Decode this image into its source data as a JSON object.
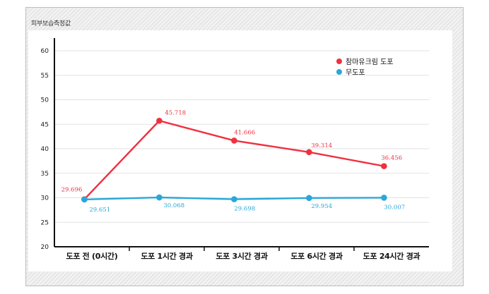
{
  "chart_data": {
    "type": "line",
    "ylabel": "피부보습측정값",
    "categories": [
      "도포 전 (0시간)",
      "도포 1시간 경과",
      "도포 3시간 경과",
      "도포 6시간 경과",
      "도포 24시간 경과"
    ],
    "ylim": [
      20,
      60
    ],
    "yticks": [
      20,
      25,
      30,
      35,
      40,
      45,
      50,
      55,
      60
    ],
    "grid": true,
    "legend_position": "top-right",
    "series": [
      {
        "name": "참마유크림 도포",
        "color": "#f03040",
        "values": [
          29.696,
          45.718,
          41.666,
          39.314,
          36.456
        ],
        "labels": [
          "29.696",
          "45.718",
          "41.666",
          "39.314",
          "36.456"
        ]
      },
      {
        "name": "무도포",
        "color": "#2aa7d8",
        "values": [
          29.651,
          30.068,
          29.698,
          29.954,
          30.007
        ],
        "labels": [
          "29.651",
          "30.068",
          "29.698",
          "29.954",
          "30.007"
        ]
      }
    ]
  }
}
